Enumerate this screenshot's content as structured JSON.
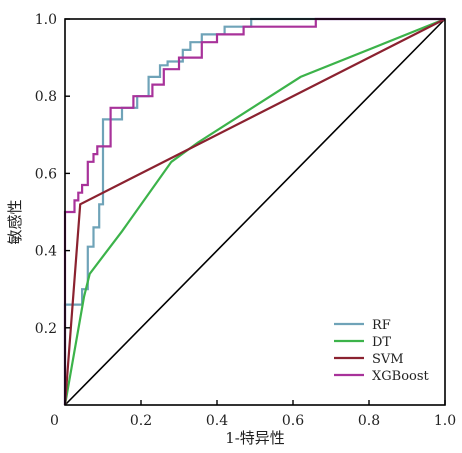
{
  "chart_data": {
    "type": "line",
    "xlabel": "1-特异性",
    "ylabel": "敏感性",
    "xlim": [
      0,
      1
    ],
    "ylim": [
      0,
      1
    ],
    "xticks": [
      "0",
      "0.2",
      "0.4",
      "0.6",
      "0.8",
      "1.0"
    ],
    "yticks": [
      "0.2",
      "0.4",
      "0.6",
      "0.8",
      "1.0"
    ],
    "legend_position": "bottom-right",
    "grid": false,
    "reference_line": {
      "x": [
        0,
        1
      ],
      "y": [
        0,
        1
      ],
      "color": "#000000"
    },
    "series": [
      {
        "name": "RF",
        "color": "#6fa3b8",
        "x": [
          0,
          0,
          0.045,
          0.045,
          0.06,
          0.06,
          0.075,
          0.075,
          0.09,
          0.09,
          0.1,
          0.1,
          0.15,
          0.15,
          0.19,
          0.19,
          0.22,
          0.22,
          0.25,
          0.25,
          0.27,
          0.27,
          0.31,
          0.31,
          0.33,
          0.33,
          0.36,
          0.36,
          0.42,
          0.42,
          0.49,
          0.49,
          1.0
        ],
        "y": [
          0,
          0.26,
          0.26,
          0.3,
          0.3,
          0.41,
          0.41,
          0.46,
          0.46,
          0.52,
          0.52,
          0.74,
          0.74,
          0.77,
          0.77,
          0.8,
          0.8,
          0.85,
          0.85,
          0.88,
          0.88,
          0.89,
          0.89,
          0.92,
          0.92,
          0.94,
          0.94,
          0.96,
          0.96,
          0.98,
          0.98,
          1.0,
          1.0
        ]
      },
      {
        "name": "DT",
        "color": "#3cb34a",
        "x": [
          0,
          0.05,
          0.065,
          0.15,
          0.28,
          0.35,
          0.62,
          1.0
        ],
        "y": [
          0,
          0.28,
          0.34,
          0.45,
          0.63,
          0.68,
          0.85,
          1.0
        ]
      },
      {
        "name": "SVM",
        "color": "#8b2230",
        "x": [
          0,
          0.04,
          0.3,
          1.0
        ],
        "y": [
          0,
          0.52,
          0.65,
          1.0
        ]
      },
      {
        "name": "XGBoost",
        "color": "#a8329a",
        "x": [
          0,
          0,
          0.025,
          0.025,
          0.035,
          0.035,
          0.045,
          0.045,
          0.06,
          0.06,
          0.075,
          0.075,
          0.085,
          0.085,
          0.12,
          0.12,
          0.18,
          0.18,
          0.23,
          0.23,
          0.26,
          0.26,
          0.3,
          0.3,
          0.36,
          0.36,
          0.4,
          0.4,
          0.47,
          0.47,
          0.66,
          0.66,
          1.0
        ],
        "y": [
          0,
          0.5,
          0.5,
          0.53,
          0.53,
          0.55,
          0.55,
          0.57,
          0.57,
          0.63,
          0.63,
          0.65,
          0.65,
          0.67,
          0.67,
          0.77,
          0.77,
          0.8,
          0.8,
          0.83,
          0.83,
          0.87,
          0.87,
          0.9,
          0.9,
          0.94,
          0.94,
          0.96,
          0.96,
          0.98,
          0.98,
          1.0,
          1.0
        ]
      }
    ]
  }
}
